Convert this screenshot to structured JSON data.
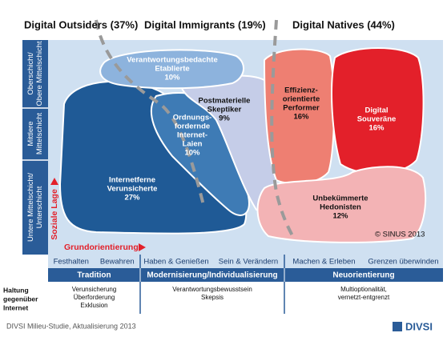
{
  "header": {
    "groups": [
      "Digital Outsiders (37%)",
      "Digital Immigrants (19%)",
      "Digital Natives (44%)"
    ]
  },
  "social_axis": {
    "label": "Soziale Lage",
    "levels": [
      [
        "Oberschicht/",
        "Obere Mittelschicht"
      ],
      [
        "Mittlere",
        "Mittelschicht"
      ],
      [
        "Untere Mittelschicht/",
        "Unterschicht"
      ]
    ]
  },
  "milieus": [
    {
      "lines": [
        "Verantwortungsbedachte",
        "Etablierte"
      ],
      "share": "10%"
    },
    {
      "lines": [
        "Internetferne",
        "Verunsicherte"
      ],
      "share": "27%"
    },
    {
      "lines": [
        "Ordnungs-",
        "fordernde",
        "Internet-",
        "Laien"
      ],
      "share": "10%"
    },
    {
      "lines": [
        "Postmaterielle",
        "Skeptiker"
      ],
      "share": "9%"
    },
    {
      "lines": [
        "Effizienz-",
        "orientierte",
        "Performer"
      ],
      "share": "16%"
    },
    {
      "lines": [
        "Digital",
        "Souveräne"
      ],
      "share": "16%"
    },
    {
      "lines": [
        "Unbekümmerte",
        "Hedonisten"
      ],
      "share": "12%"
    }
  ],
  "copyright": "© SINUS 2013",
  "orientation_axis": {
    "label": "Grundorientierung",
    "segments": [
      {
        "values": [
          "Festhalten",
          "Bewahren"
        ],
        "title": "Tradition"
      },
      {
        "values": [
          "Haben & Genießen",
          "Sein & Verändern"
        ],
        "title": "Modernisierung/Individualisierung"
      },
      {
        "values": [
          "Machen & Erleben",
          "Grenzen überwinden"
        ],
        "title": "Neuorientierung"
      }
    ]
  },
  "internet_attitude": {
    "label": [
      "Haltung",
      "gegenüber",
      "Internet"
    ],
    "columns": [
      [
        "Verunsicherung",
        "Überforderung",
        "Exklusion"
      ],
      [
        "Verantwortungsbewusstsein",
        "Skepsis"
      ],
      [
        "Multioptionalität,",
        "vernetzt-entgrenzt"
      ]
    ]
  },
  "footer": {
    "source": "DIVSI Milieu-Studie, Aktualisierung 2013",
    "logo": "DIVSI"
  }
}
